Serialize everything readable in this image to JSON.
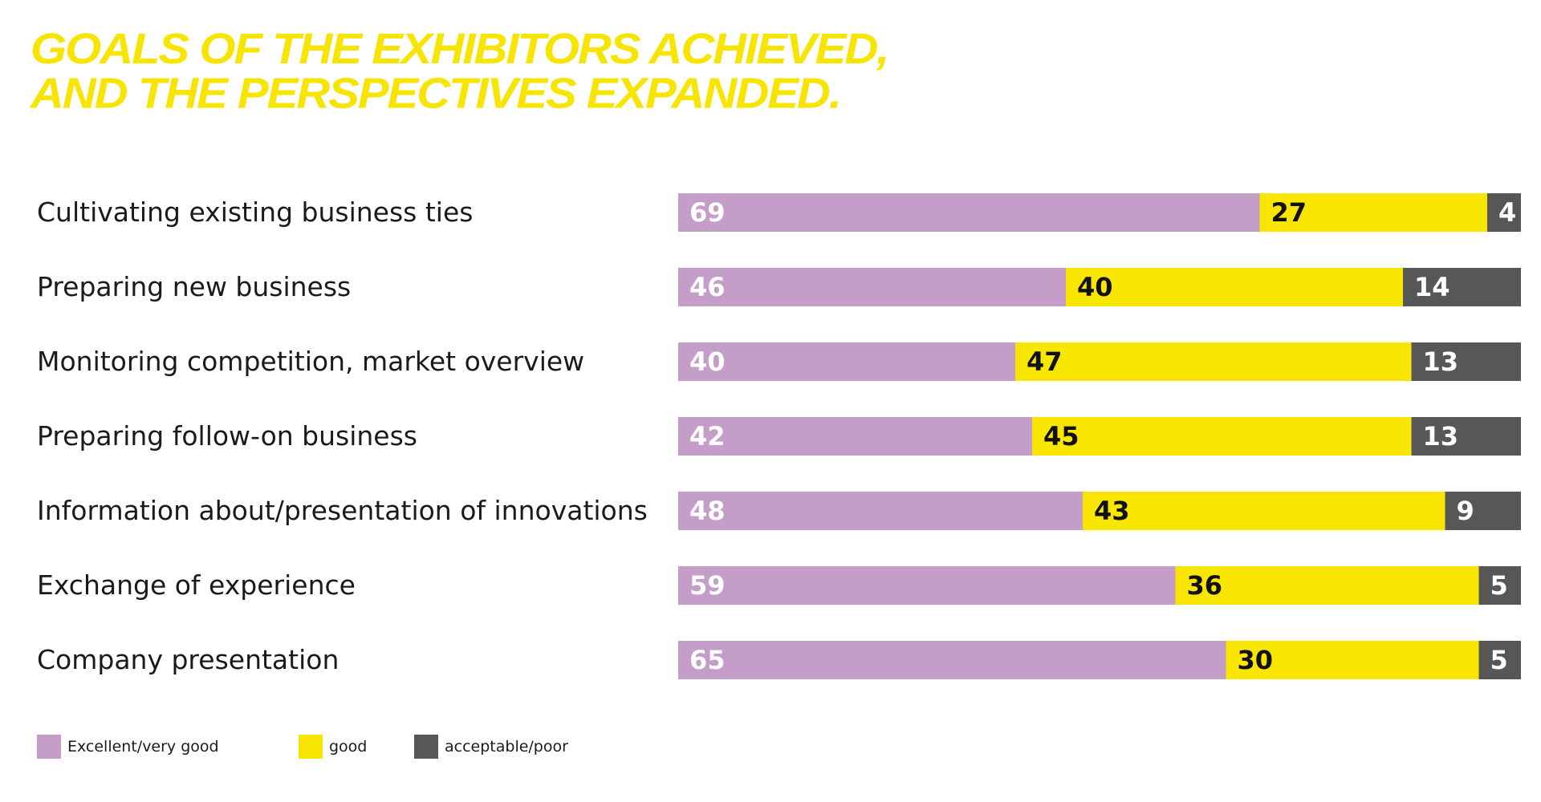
{
  "headline": {
    "line1": "GOALS OF THE EXHIBITORS ACHIEVED,",
    "line2": "AND THE PERSPECTIVES EXPANDED."
  },
  "colors": {
    "excellent": "#c59dc9",
    "good": "#f8e600",
    "poor": "#575757",
    "headline": "#f7e400"
  },
  "chart_data": {
    "type": "bar",
    "orientation": "horizontal",
    "stacked": true,
    "title": "GOALS OF THE EXHIBITORS ACHIEVED, AND THE PERSPECTIVES EXPANDED.",
    "categories": [
      "Cultivating existing business ties",
      "Preparing new business",
      "Monitoring competition, market overview",
      "Preparing follow-on business",
      "Information about/presentation of innovations",
      "Exchange of experience",
      "Company presentation"
    ],
    "series": [
      {
        "name": "Excellent/very good",
        "values": [
          69,
          46,
          40,
          42,
          48,
          59,
          65
        ]
      },
      {
        "name": "good",
        "values": [
          27,
          40,
          47,
          45,
          43,
          36,
          30
        ]
      },
      {
        "name": "acceptable/poor",
        "values": [
          4,
          14,
          13,
          13,
          9,
          5,
          5
        ]
      }
    ],
    "xlim": [
      0,
      100
    ],
    "grid": false,
    "legend_position": "bottom-left",
    "data_labels": true
  }
}
